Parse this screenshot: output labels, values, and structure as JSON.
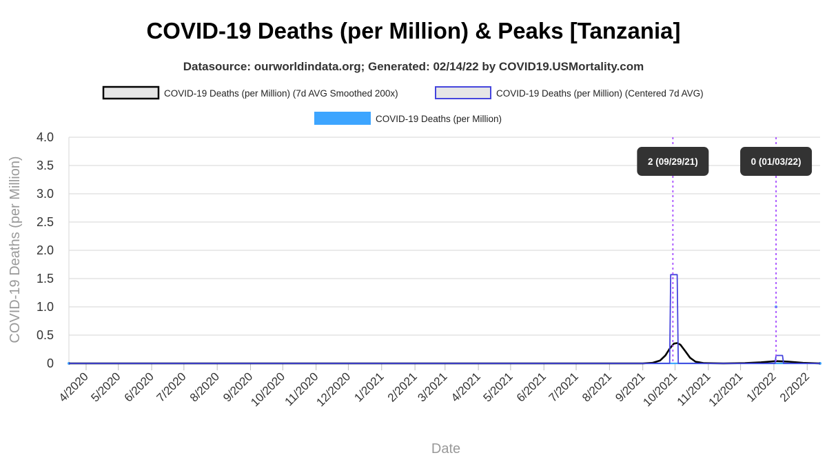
{
  "chart_data": {
    "type": "line",
    "title": "COVID-19 Deaths (per Million) & Peaks [Tanzania]",
    "subtitle": "Datasource: ourworldindata.org; Generated: 02/14/22 by COVID19.USMortality.com",
    "xlabel": "Date",
    "ylabel": "COVID-19 Deaths (per Million)",
    "ylim": [
      0,
      4
    ],
    "yticks": [
      "0",
      "0.5",
      "1.0",
      "1.5",
      "2.0",
      "2.5",
      "3.0",
      "3.5",
      "4.0"
    ],
    "x_range": [
      "2020-03-16",
      "2022-02-13"
    ],
    "xticks": [
      {
        "label": "4/2020",
        "date": "2020-04-01"
      },
      {
        "label": "5/2020",
        "date": "2020-05-01"
      },
      {
        "label": "6/2020",
        "date": "2020-06-01"
      },
      {
        "label": "7/2020",
        "date": "2020-07-01"
      },
      {
        "label": "8/2020",
        "date": "2020-08-01"
      },
      {
        "label": "9/2020",
        "date": "2020-09-01"
      },
      {
        "label": "10/2020",
        "date": "2020-10-01"
      },
      {
        "label": "11/2020",
        "date": "2020-11-01"
      },
      {
        "label": "12/2020",
        "date": "2020-12-01"
      },
      {
        "label": "1/2021",
        "date": "2021-01-01"
      },
      {
        "label": "2/2021",
        "date": "2021-02-01"
      },
      {
        "label": "3/2021",
        "date": "2021-03-01"
      },
      {
        "label": "4/2021",
        "date": "2021-04-01"
      },
      {
        "label": "5/2021",
        "date": "2021-05-01"
      },
      {
        "label": "6/2021",
        "date": "2021-06-01"
      },
      {
        "label": "7/2021",
        "date": "2021-07-01"
      },
      {
        "label": "8/2021",
        "date": "2021-08-01"
      },
      {
        "label": "9/2021",
        "date": "2021-09-01"
      },
      {
        "label": "10/2021",
        "date": "2021-10-01"
      },
      {
        "label": "11/2021",
        "date": "2021-11-01"
      },
      {
        "label": "12/2021",
        "date": "2021-12-01"
      },
      {
        "label": "1/2022",
        "date": "2022-01-01"
      },
      {
        "label": "2/2022",
        "date": "2022-02-01"
      }
    ],
    "legend": {
      "placement": "top",
      "entries": [
        {
          "label": "COVID-19 Deaths (per Million) (7d AVG Smoothed 200x)",
          "swatch_fill": "#e6e6e6",
          "swatch_stroke": "#000000"
        },
        {
          "label": "COVID-19 Deaths (per Million) (Centered 7d AVG)",
          "swatch_fill": "#e6e6e6",
          "swatch_stroke": "#4444dd"
        },
        {
          "label": "COVID-19 Deaths (per Million)",
          "swatch_fill": "#3da5ff",
          "swatch_stroke": "#3da5ff"
        }
      ]
    },
    "grid": true,
    "series": [
      {
        "name": "COVID-19 Deaths (per Million) (7d AVG Smoothed 200x)",
        "color": "#000000",
        "points": [
          [
            "2020-03-16",
            0
          ],
          [
            "2021-09-01",
            0
          ],
          [
            "2021-09-10",
            0.01
          ],
          [
            "2021-09-17",
            0.05
          ],
          [
            "2021-09-22",
            0.14
          ],
          [
            "2021-09-26",
            0.26
          ],
          [
            "2021-09-30",
            0.35
          ],
          [
            "2021-10-03",
            0.36
          ],
          [
            "2021-10-06",
            0.33
          ],
          [
            "2021-10-10",
            0.23
          ],
          [
            "2021-10-15",
            0.1
          ],
          [
            "2021-10-20",
            0.03
          ],
          [
            "2021-10-28",
            0.005
          ],
          [
            "2021-11-15",
            0
          ],
          [
            "2021-12-05",
            0.005
          ],
          [
            "2021-12-20",
            0.02
          ],
          [
            "2022-01-03",
            0.04
          ],
          [
            "2022-01-15",
            0.03
          ],
          [
            "2022-01-28",
            0.01
          ],
          [
            "2022-02-13",
            0
          ]
        ]
      },
      {
        "name": "COVID-19 Deaths (per Million) (Centered 7d AVG)",
        "color": "#4444dd",
        "points": [
          [
            "2020-03-16",
            0
          ],
          [
            "2021-09-26",
            0
          ],
          [
            "2021-09-27",
            1.57
          ],
          [
            "2021-10-03",
            1.57
          ],
          [
            "2021-10-04",
            0
          ],
          [
            "2022-01-02",
            0
          ],
          [
            "2022-01-03",
            0.14
          ],
          [
            "2022-01-09",
            0.14
          ],
          [
            "2022-01-10",
            0
          ],
          [
            "2022-02-13",
            0
          ]
        ]
      },
      {
        "name": "COVID-19 Deaths (per Million)",
        "color": "#3da5ff",
        "points": [
          [
            "2020-03-16",
            0
          ],
          [
            "2022-02-13",
            0
          ]
        ],
        "markers": [
          [
            "2020-03-16",
            0
          ],
          [
            "2022-01-03",
            1.0
          ],
          [
            "2022-02-13",
            0
          ]
        ]
      }
    ],
    "annotations": [
      {
        "date": "2021-09-29",
        "label": "2 (09/29/21)",
        "line_color": "#a64dff"
      },
      {
        "date": "2022-01-03",
        "label": "0 (01/03/22)",
        "line_color": "#a64dff"
      }
    ]
  }
}
